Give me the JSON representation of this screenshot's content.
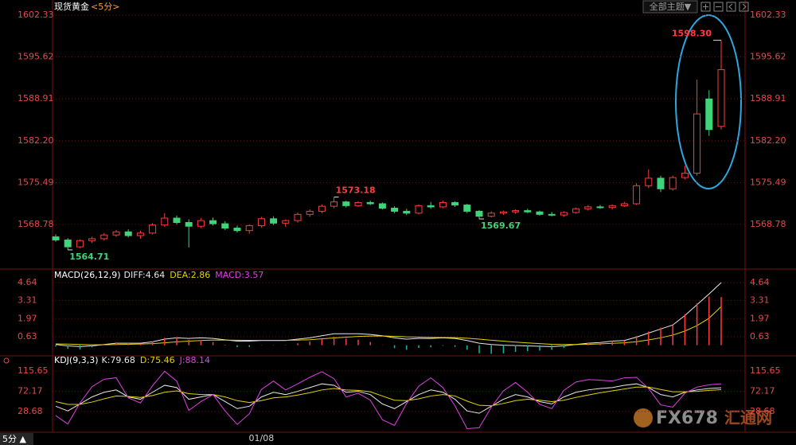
{
  "header": {
    "title": "现货黄金",
    "period": "<5分>",
    "theme_button": "全部主题▼"
  },
  "chart_data": [
    {
      "type": "candlestick",
      "categories": [
        null,
        null,
        null,
        null,
        null,
        null,
        null,
        null,
        null,
        null,
        null,
        null,
        null,
        null,
        null,
        null,
        null,
        "01/08",
        null,
        null,
        null,
        null,
        null,
        null,
        null,
        null,
        null,
        null,
        null,
        null,
        null,
        null,
        null,
        null,
        null,
        null,
        null,
        null,
        null,
        null,
        null,
        null,
        null,
        null,
        null,
        null,
        null,
        null,
        null,
        null,
        null,
        null,
        null,
        null,
        null,
        null
      ],
      "open": [
        1566.8,
        1566.3,
        1565.2,
        1566.2,
        1566.5,
        1567.1,
        1567.6,
        1567.0,
        1567.4,
        1568.7,
        1569.8,
        1569.1,
        1568.5,
        1569.4,
        1568.9,
        1568.2,
        1567.8,
        1568.6,
        1569.7,
        1569.0,
        1569.4,
        1570.4,
        1570.9,
        1571.7,
        1572.4,
        1571.8,
        1572.3,
        1572.1,
        1571.4,
        1570.9,
        1570.6,
        1571.8,
        1571.6,
        1572.3,
        1571.9,
        1570.9,
        1570.1,
        1570.6,
        1570.8,
        1571.0,
        1570.8,
        1570.4,
        1570.3,
        1570.7,
        1571.3,
        1571.6,
        1571.5,
        1571.8,
        1572.1,
        1575.0,
        1576.2,
        1574.5,
        1576.3,
        1577.0,
        1588.9,
        1584.5
      ],
      "high": [
        1567.2,
        1566.6,
        1566.4,
        1566.8,
        1567.4,
        1567.9,
        1568.0,
        1567.8,
        1569.0,
        1570.6,
        1570.2,
        1569.6,
        1569.8,
        1569.9,
        1569.3,
        1568.6,
        1568.8,
        1570.0,
        1570.1,
        1569.6,
        1570.7,
        1571.2,
        1572.0,
        1573.18,
        1572.6,
        1572.5,
        1572.6,
        1572.3,
        1571.7,
        1571.3,
        1572.0,
        1572.4,
        1572.6,
        1572.5,
        1572.1,
        1571.1,
        1570.9,
        1571.0,
        1571.2,
        1571.3,
        1571.0,
        1570.8,
        1570.9,
        1571.5,
        1571.9,
        1571.9,
        1572.0,
        1572.4,
        1575.4,
        1577.6,
        1576.6,
        1576.6,
        1578.2,
        1592.0,
        1590.3,
        1598.3
      ],
      "low": [
        1566.0,
        1564.71,
        1565.0,
        1565.8,
        1566.2,
        1566.8,
        1566.7,
        1566.5,
        1567.2,
        1568.4,
        1568.8,
        1565.1,
        1568.2,
        1568.6,
        1567.9,
        1567.5,
        1567.3,
        1568.3,
        1568.7,
        1568.4,
        1569.1,
        1570.0,
        1570.6,
        1571.4,
        1571.5,
        1571.6,
        1571.9,
        1571.2,
        1570.6,
        1570.3,
        1570.4,
        1571.3,
        1571.4,
        1571.6,
        1570.6,
        1569.67,
        1569.9,
        1570.3,
        1570.5,
        1570.6,
        1570.2,
        1570.1,
        1570.0,
        1570.5,
        1571.0,
        1571.3,
        1571.2,
        1571.6,
        1571.9,
        1574.6,
        1574.0,
        1574.2,
        1576.0,
        1576.6,
        1583.0,
        1584.0
      ],
      "close": [
        1566.3,
        1565.2,
        1566.2,
        1566.5,
        1567.1,
        1567.6,
        1567.0,
        1567.4,
        1568.7,
        1569.8,
        1569.1,
        1568.5,
        1569.4,
        1568.9,
        1568.2,
        1567.8,
        1568.6,
        1569.7,
        1569.0,
        1569.4,
        1570.4,
        1570.9,
        1571.7,
        1572.4,
        1571.8,
        1572.3,
        1572.1,
        1571.4,
        1570.9,
        1570.6,
        1571.8,
        1571.6,
        1572.3,
        1571.9,
        1570.9,
        1570.1,
        1570.6,
        1570.8,
        1571.0,
        1570.8,
        1570.4,
        1570.3,
        1570.7,
        1571.3,
        1571.6,
        1571.5,
        1571.8,
        1572.1,
        1575.0,
        1576.2,
        1574.5,
        1576.3,
        1577.0,
        1586.5,
        1584.0,
        1593.6
      ],
      "up_color": "#ff3b3b",
      "down_color": "#3fd47a",
      "ylim": [
        1562.02,
        1604.12
      ],
      "yticks": [
        1602.33,
        1595.62,
        1588.91,
        {
          "value": 1582.2,
          "label": "1582.20"
        },
        1575.49,
        1568.78
      ],
      "grid": true,
      "annotations": [
        {
          "value": 1598.3,
          "label": "1598.30"
        },
        {
          "value": 1573.18,
          "label": "1573.18"
        },
        {
          "value": 1564.71,
          "label": "1564.71"
        },
        {
          "value": 1569.67,
          "label": "1569.67"
        }
      ]
    },
    {
      "type": "macd",
      "title": "MACD(26,12,9)",
      "series": [
        {
          "name": "DIFF:4.64",
          "color": "#e8e8e8",
          "values": [
            0.05,
            -0.05,
            -0.1,
            -0.05,
            0.05,
            0.15,
            0.15,
            0.15,
            0.25,
            0.45,
            0.55,
            0.5,
            0.55,
            0.5,
            0.4,
            0.3,
            0.3,
            0.35,
            0.35,
            0.35,
            0.45,
            0.55,
            0.7,
            0.85,
            0.85,
            0.85,
            0.8,
            0.7,
            0.55,
            0.45,
            0.5,
            0.5,
            0.55,
            0.5,
            0.35,
            0.15,
            0.05,
            0.0,
            -0.02,
            -0.05,
            -0.08,
            -0.1,
            -0.05,
            0.05,
            0.15,
            0.2,
            0.3,
            0.35,
            0.6,
            0.9,
            1.2,
            1.5,
            2.2,
            3.0,
            3.8,
            4.64
          ]
        },
        {
          "name": "DEA:2.86",
          "color": "#e6d200",
          "values": [
            0.1,
            0.08,
            0.05,
            0.03,
            0.03,
            0.05,
            0.07,
            0.09,
            0.12,
            0.18,
            0.25,
            0.3,
            0.35,
            0.38,
            0.38,
            0.37,
            0.36,
            0.36,
            0.36,
            0.36,
            0.38,
            0.41,
            0.47,
            0.54,
            0.6,
            0.65,
            0.68,
            0.69,
            0.66,
            0.62,
            0.6,
            0.58,
            0.57,
            0.56,
            0.52,
            0.45,
            0.37,
            0.3,
            0.23,
            0.17,
            0.12,
            0.07,
            0.05,
            0.05,
            0.07,
            0.1,
            0.14,
            0.18,
            0.26,
            0.39,
            0.55,
            0.75,
            1.05,
            1.45,
            2.0,
            2.86
          ]
        },
        {
          "name": "MACD:3.57",
          "color": "#e040e0",
          "style": "bar",
          "up_color": "#ff3b3b",
          "down_color": "#19b5a0",
          "values": [
            -0.1,
            -0.26,
            -0.3,
            -0.16,
            0.04,
            0.2,
            0.16,
            0.12,
            0.26,
            0.54,
            0.6,
            0.4,
            0.4,
            0.24,
            0.04,
            -0.14,
            -0.12,
            -0.02,
            -0.02,
            -0.02,
            0.14,
            0.28,
            0.46,
            0.62,
            0.5,
            0.4,
            0.24,
            0.02,
            -0.22,
            -0.34,
            -0.2,
            -0.16,
            -0.04,
            -0.12,
            -0.34,
            -0.6,
            -0.64,
            -0.6,
            -0.5,
            -0.44,
            -0.4,
            -0.34,
            -0.2,
            0,
            0.16,
            0.2,
            0.32,
            0.34,
            0.68,
            1.02,
            1.3,
            1.5,
            2.3,
            3.1,
            3.6,
            3.57
          ]
        }
      ],
      "ylim": [
        -0.67,
        5.23
      ],
      "yticks": [
        4.64,
        3.31,
        1.97,
        0.63
      ],
      "grid": true
    },
    {
      "type": "line",
      "title": "KDJ(9,3,3)",
      "series": [
        {
          "name": "K:79.68",
          "color": "#e8e8e8",
          "values": [
            40,
            30,
            45,
            60,
            70,
            75,
            60,
            55,
            70,
            85,
            80,
            55,
            60,
            65,
            50,
            35,
            40,
            60,
            70,
            65,
            72,
            80,
            88,
            85,
            70,
            72,
            65,
            45,
            35,
            50,
            65,
            75,
            70,
            55,
            30,
            25,
            40,
            55,
            65,
            60,
            50,
            45,
            60,
            70,
            75,
            78,
            80,
            85,
            88,
            80,
            65,
            60,
            70,
            75,
            78,
            79.68
          ]
        },
        {
          "name": "D:75.46",
          "color": "#e6d200",
          "values": [
            50,
            44,
            44,
            49,
            56,
            62,
            61,
            59,
            63,
            70,
            73,
            67,
            65,
            65,
            60,
            52,
            48,
            52,
            58,
            60,
            64,
            69,
            75,
            78,
            75,
            74,
            71,
            62,
            53,
            52,
            56,
            62,
            65,
            62,
            51,
            42,
            41,
            46,
            52,
            55,
            53,
            50,
            53,
            59,
            64,
            69,
            73,
            77,
            81,
            81,
            76,
            71,
            71,
            72,
            74,
            75.46
          ]
        },
        {
          "name": "J:88.14",
          "color": "#e040e0",
          "values": [
            20,
            2,
            47,
            82,
            98,
            101,
            58,
            47,
            84,
            115,
            94,
            31,
            50,
            65,
            30,
            1,
            24,
            76,
            94,
            75,
            88,
            102,
            114,
            99,
            60,
            68,
            53,
            11,
            -1,
            46,
            83,
            101,
            80,
            41,
            -8,
            -6,
            38,
            73,
            91,
            70,
            44,
            35,
            74,
            92,
            97,
            96,
            94,
            101,
            102,
            78,
            43,
            38,
            68,
            81,
            86,
            88.14
          ]
        }
      ],
      "ylim": [
        -10.6,
        139.5
      ],
      "yticks": [
        115.65,
        72.17,
        28.68
      ],
      "grid": true
    }
  ],
  "footer": {
    "period": "5分 ▲"
  },
  "watermark": {
    "brand": "FX678",
    "name": "汇通网"
  }
}
